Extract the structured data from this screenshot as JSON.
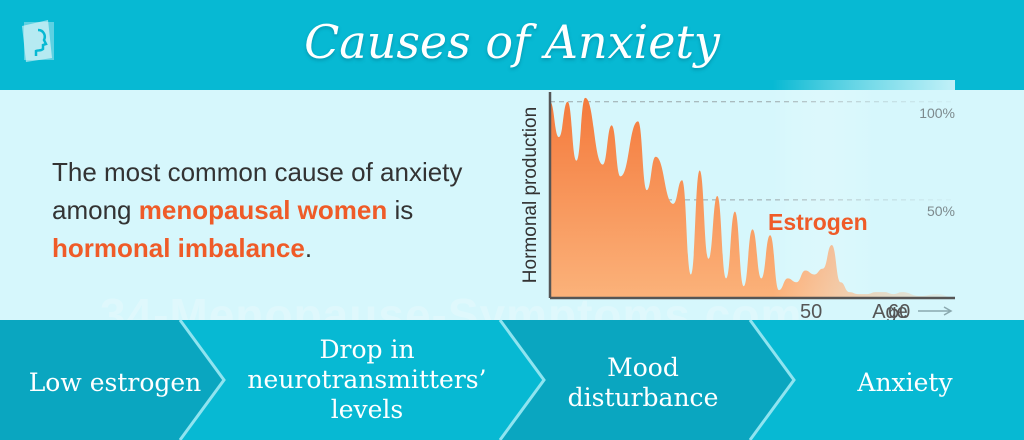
{
  "header": {
    "title": "Causes of Anxiety"
  },
  "lead": {
    "part1": "The most common cause of anxiety among ",
    "highlight1": "menopausal women",
    "part2": " is ",
    "highlight2": "hormonal imbalance",
    "part3": "."
  },
  "watermark": "34-Menopause-Symptoms.com",
  "colors": {
    "header_bg": "#07b9d3",
    "middle_bg": "#d6f7fc",
    "flow_bg": "#07b9d3",
    "accent": "#ef5b28"
  },
  "chart_data": {
    "type": "area",
    "ylabel": "Hormonal production",
    "xlabel": "Age",
    "x_ticks": [
      "50",
      "60"
    ],
    "y_ticks": [
      "100%",
      "50%"
    ],
    "series": [
      {
        "name": "Estrogen",
        "x": [
          20,
          21,
          22,
          23,
          24,
          26,
          27,
          28,
          30,
          31,
          32,
          34,
          35,
          36,
          37,
          38,
          39,
          40,
          41,
          42,
          43,
          44,
          45,
          46,
          47,
          48,
          49,
          50,
          51,
          52,
          53,
          54,
          55,
          56,
          57,
          58,
          59,
          60,
          62,
          64,
          66
        ],
        "y": [
          100,
          82,
          100,
          70,
          102,
          68,
          88,
          62,
          90,
          55,
          72,
          48,
          60,
          12,
          65,
          20,
          52,
          10,
          44,
          6,
          35,
          10,
          32,
          4,
          10,
          8,
          14,
          12,
          15,
          27,
          8,
          3,
          2,
          2,
          3,
          3,
          2,
          3,
          1,
          2,
          0
        ]
      }
    ],
    "xlim": [
      20,
      66
    ],
    "ylim": [
      0,
      105
    ],
    "grid": "dashed horizontal at 50% and 100%"
  },
  "flow": {
    "steps": [
      {
        "label": "Low estrogen"
      },
      {
        "label": "Drop in neurotransmitters’ levels"
      },
      {
        "label": "Mood disturbance"
      },
      {
        "label": "Anxiety"
      }
    ]
  }
}
